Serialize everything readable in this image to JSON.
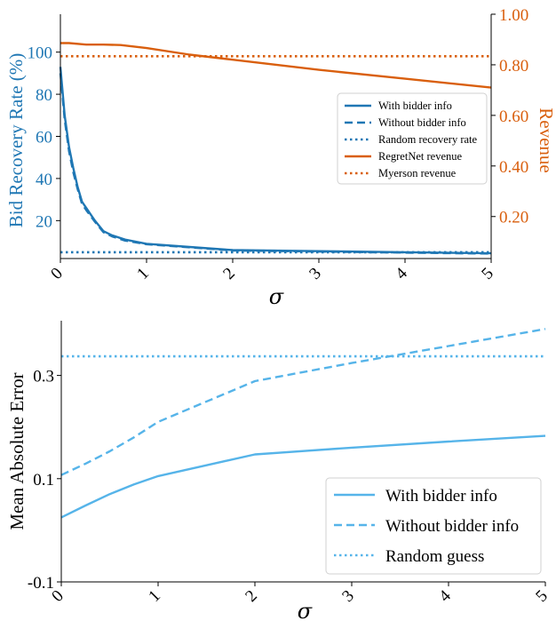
{
  "chart_data": [
    {
      "type": "line",
      "xlabel": "σ",
      "ylabel": "Bid Recovery Rate (%)",
      "y2label": "Revenue",
      "xlim": [
        0,
        5
      ],
      "ylim": [
        2,
        118
      ],
      "y2lim": [
        0.034,
        1.0
      ],
      "xticks": [
        "0",
        "1",
        "2",
        "3",
        "4",
        "5"
      ],
      "yticks": [
        "20",
        "40",
        "60",
        "80",
        "100"
      ],
      "y2ticks": [
        "0.20",
        "0.40",
        "0.60",
        "0.80",
        "1.00"
      ],
      "legend_position": "right",
      "colors": {
        "recovery": "#1f77b4",
        "revenue": "#d95f0e"
      },
      "series": [
        {
          "name": "With bidder info",
          "axis": "left",
          "style": "solid",
          "x": [
            0,
            0.05,
            0.1,
            0.15,
            0.2,
            0.25,
            0.3,
            0.4,
            0.5,
            0.6,
            0.75,
            1.0,
            1.5,
            2.0,
            3.0,
            4.0,
            5.0
          ],
          "y": [
            93,
            70,
            55,
            45,
            36,
            29,
            26,
            20,
            15,
            13,
            11,
            9,
            7.5,
            6,
            5.5,
            5,
            4.5
          ]
        },
        {
          "name": "Without bidder info",
          "axis": "left",
          "style": "dashed",
          "x": [
            0,
            0.05,
            0.1,
            0.15,
            0.2,
            0.25,
            0.3,
            0.4,
            0.5,
            0.6,
            0.75,
            1.0,
            1.5,
            2.0,
            3.0,
            4.0,
            5.0
          ],
          "y": [
            90,
            68,
            53,
            43,
            35,
            28,
            25,
            19.5,
            14.5,
            12.5,
            10.5,
            8.8,
            7.3,
            5.8,
            5.3,
            4.8,
            4.3
          ]
        },
        {
          "name": "Random recovery rate",
          "axis": "left",
          "style": "dotted",
          "x": [
            0,
            5
          ],
          "y": [
            5,
            5
          ]
        },
        {
          "name": "RegretNet revenue",
          "axis": "right",
          "style": "solid",
          "x": [
            0,
            0.1,
            0.3,
            0.5,
            0.7,
            1.0,
            1.5,
            2.0,
            3.0,
            4.0,
            5.0
          ],
          "y": [
            0.886,
            0.886,
            0.88,
            0.88,
            0.878,
            0.866,
            0.84,
            0.82,
            0.78,
            0.745,
            0.71
          ]
        },
        {
          "name": "Myerson revenue",
          "axis": "right",
          "style": "dotted",
          "x": [
            0,
            5
          ],
          "y": [
            0.834,
            0.834
          ]
        }
      ]
    },
    {
      "type": "line",
      "xlabel": "σ",
      "ylabel": "Mean Absolute Error",
      "xlim": [
        0,
        5
      ],
      "ylim": [
        -0.1,
        0.406
      ],
      "xticks": [
        "0",
        "1",
        "2",
        "3",
        "4",
        "5"
      ],
      "yticks": [
        "-0.1",
        "0.1",
        "0.3"
      ],
      "legend_position": "lower right",
      "colors": {
        "mae": "#56b4e9"
      },
      "series": [
        {
          "name": "With bidder info",
          "style": "solid",
          "x": [
            0,
            0.25,
            0.5,
            0.75,
            1.0,
            2.0,
            3.0,
            4.0,
            5.0
          ],
          "y": [
            0.025,
            0.048,
            0.07,
            0.089,
            0.105,
            0.147,
            0.16,
            0.172,
            0.183
          ]
        },
        {
          "name": "Without bidder info",
          "style": "dashed",
          "x": [
            0,
            0.25,
            0.5,
            0.75,
            1.0,
            2.0,
            3.0,
            4.0,
            5.0
          ],
          "y": [
            0.107,
            0.129,
            0.153,
            0.18,
            0.21,
            0.289,
            0.324,
            0.357,
            0.39
          ]
        },
        {
          "name": "Random guess",
          "style": "dotted",
          "x": [
            0,
            5
          ],
          "y": [
            0.337,
            0.337
          ]
        }
      ]
    }
  ]
}
